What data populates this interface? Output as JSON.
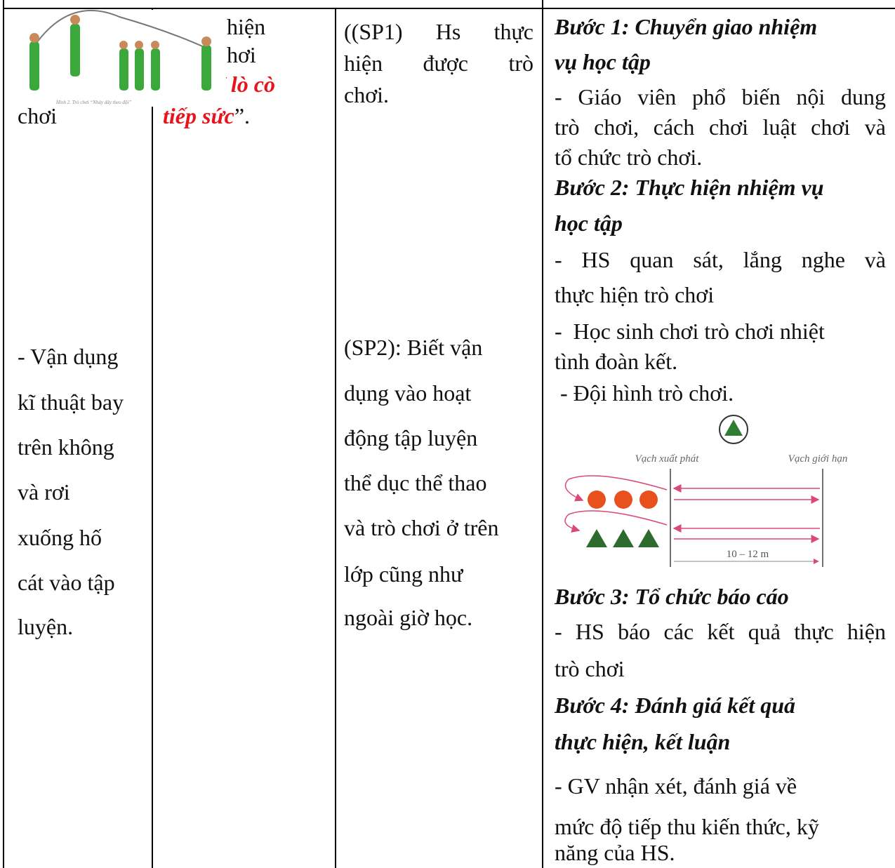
{
  "table": {
    "col1": {
      "image_caption": "Hình 2. Trò chơi “Nhảy dây theo đội”",
      "top_text": "chơi",
      "body": [
        "- Vận dụng",
        "kĩ thuật bay",
        "trên không",
        "và rơi",
        "xuống hố",
        "cát vào tập",
        "luyện."
      ]
    },
    "col2": {
      "lines": [
        "hiện",
        "hơi"
      ],
      "game_name": [
        "/ lò cò",
        "tiếp sức"
      ],
      "closing": "”."
    },
    "col3": {
      "sp1": [
        "((SP1)  Hs  thực",
        "hiện  được  trò",
        "chơi."
      ],
      "sp2": [
        "(SP2): Biết vận",
        "dụng vào hoạt",
        "động tập luyện",
        "thể dục thể thao",
        "và trò chơi ở trên",
        "lớp cũng như",
        "ngoài giờ học."
      ]
    },
    "col4": {
      "step1": {
        "heading": [
          "Bước 1: Chuyển giao nhiệm",
          "vụ học tập"
        ],
        "text": [
          "- Giáo viên phổ biến nội dung",
          "trò chơi, cách chơi luật chơi và",
          "tổ chức trò chơi."
        ]
      },
      "step2": {
        "heading": [
          "Bước 2: Thực hiện nhiệm vụ",
          "học tập"
        ],
        "text1": [
          "- HS quan sát, lắng nghe và",
          "thực hiện trò chơi"
        ],
        "text2": [
          "-  Học sinh chơi trò chơi nhiệt",
          "tình đoàn kết."
        ],
        "text3": " - Đội hình trò chơi."
      },
      "diagram": {
        "start_line": "Vạch xuất phát",
        "limit_line": "Vạch giới hạn",
        "distance": "10 – 12 m"
      },
      "step3": {
        "heading": "Bước 3: Tổ chức báo cáo",
        "text": [
          "- HS báo các kết quả thực hiện",
          "trò chơi"
        ]
      },
      "step4": {
        "heading": [
          "Bước 4: Đánh giá kết quả",
          "thực hiện, kết luận"
        ],
        "text": [
          "- GV nhận xét, đánh giá về",
          "mức độ tiếp thu kiến thức, kỹ",
          "năng của HS."
        ]
      }
    }
  }
}
